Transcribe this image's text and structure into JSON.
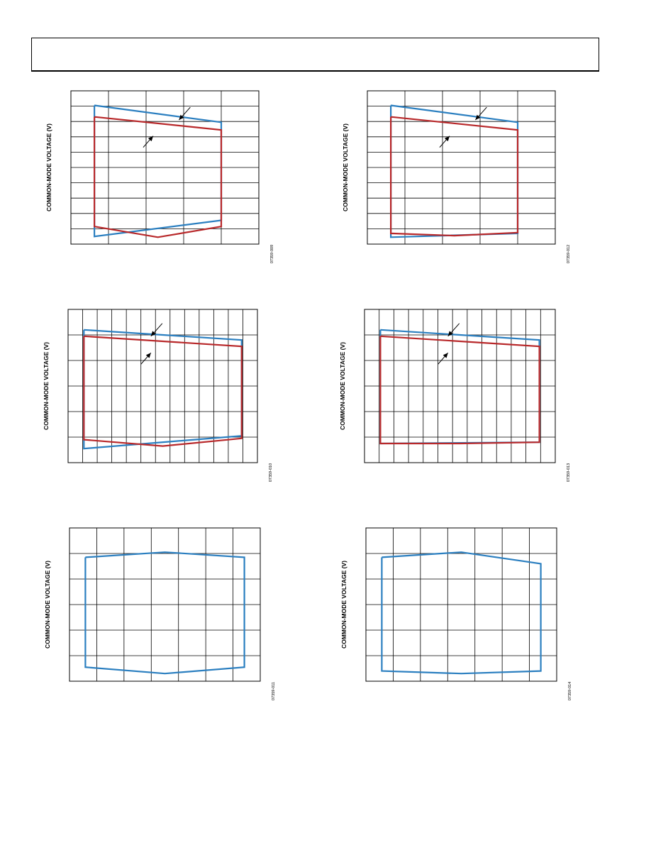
{
  "header": {
    "title": ""
  },
  "colors": {
    "blue": "#2b7fc0",
    "red": "#b8282a",
    "grid": "#000000"
  },
  "chart_data": [
    {
      "type": "line",
      "figure_code": "07359-009",
      "ylabel": "COMMON-MODE VOLTAGE (V)",
      "xlim": [
        0,
        4
      ],
      "ylim": [
        0,
        10
      ],
      "grid": true,
      "xtick_count": 5,
      "ytick_count": 10,
      "series": [
        {
          "color": "blue",
          "x": [
            0.5,
            0.5,
            3.2,
            3.2,
            0.5
          ],
          "y": [
            9.05,
            0.5,
            1.55,
            7.95,
            9.05
          ]
        },
        {
          "color": "red",
          "x": [
            0.5,
            0.5,
            1.85,
            3.2,
            3.2,
            0.5
          ],
          "y": [
            8.3,
            1.15,
            0.45,
            1.15,
            7.45,
            8.3
          ]
        }
      ],
      "arrows": [
        {
          "series": "blue",
          "x": 2.3,
          "y": 8.1
        },
        {
          "series": "red",
          "x": 1.75,
          "y": 7.05
        }
      ]
    },
    {
      "type": "line",
      "figure_code": "07359-012",
      "ylabel": "COMMON-MODE VOLTAGE (V)",
      "xlim": [
        0,
        4
      ],
      "ylim": [
        0,
        10
      ],
      "grid": true,
      "xtick_count": 5,
      "ytick_count": 10,
      "series": [
        {
          "color": "blue",
          "x": [
            0.5,
            0.5,
            3.2,
            3.2,
            0.5
          ],
          "y": [
            9.05,
            0.45,
            0.7,
            7.95,
            9.05
          ]
        },
        {
          "color": "red",
          "x": [
            0.5,
            0.5,
            1.85,
            3.2,
            3.2,
            0.5
          ],
          "y": [
            8.3,
            0.7,
            0.55,
            0.75,
            7.45,
            8.3
          ]
        }
      ],
      "arrows": [
        {
          "series": "blue",
          "x": 2.3,
          "y": 8.1
        },
        {
          "series": "red",
          "x": 1.75,
          "y": 7.05
        }
      ]
    },
    {
      "type": "line",
      "figure_code": "07359-010",
      "ylabel": "COMMON-MODE VOLTAGE (V)",
      "xlim": [
        0,
        12
      ],
      "ylim": [
        0,
        6
      ],
      "grid": true,
      "xtick_count": 13,
      "ytick_count": 6,
      "series": [
        {
          "color": "blue",
          "x": [
            1,
            1,
            11,
            11,
            1
          ],
          "y": [
            5.2,
            0.55,
            1.05,
            4.8,
            5.2
          ]
        },
        {
          "color": "red",
          "x": [
            1,
            1,
            6,
            11,
            11,
            1
          ],
          "y": [
            4.95,
            0.9,
            0.65,
            0.95,
            4.55,
            4.95
          ]
        }
      ],
      "arrows": [
        {
          "series": "blue",
          "x": 5.25,
          "y": 4.95
        },
        {
          "series": "red",
          "x": 5.25,
          "y": 4.3
        }
      ]
    },
    {
      "type": "line",
      "figure_code": "07359-013",
      "ylabel": "COMMON-MODE VOLTAGE (V)",
      "xlim": [
        0,
        12
      ],
      "ylim": [
        0,
        6
      ],
      "grid": true,
      "xtick_count": 13,
      "ytick_count": 6,
      "series": [
        {
          "color": "blue",
          "x": [
            1,
            1,
            11,
            11,
            1
          ],
          "y": [
            5.2,
            0.75,
            0.8,
            4.8,
            5.2
          ]
        },
        {
          "color": "red",
          "x": [
            1,
            1,
            6,
            11,
            11,
            1
          ],
          "y": [
            4.95,
            0.75,
            0.75,
            0.8,
            4.55,
            4.95
          ]
        }
      ],
      "arrows": [
        {
          "series": "blue",
          "x": 5.25,
          "y": 4.95
        },
        {
          "series": "red",
          "x": 5.25,
          "y": 4.3
        }
      ]
    },
    {
      "type": "line",
      "figure_code": "07359-011",
      "ylabel": "COMMON-MODE VOLTAGE (V)",
      "xlim": [
        0,
        6
      ],
      "ylim": [
        0,
        6
      ],
      "grid": true,
      "xtick_count": 7,
      "ytick_count": 6,
      "series": [
        {
          "color": "blue",
          "x": [
            0.5,
            0.5,
            3,
            5.5,
            5.5,
            3,
            0.5
          ],
          "y": [
            4.85,
            0.55,
            0.3,
            0.55,
            4.85,
            5.05,
            4.85
          ]
        }
      ],
      "arrows": []
    },
    {
      "type": "line",
      "figure_code": "07359-014",
      "ylabel": "COMMON-MODE VOLTAGE (V)",
      "xlim": [
        0,
        6
      ],
      "ylim": [
        0,
        6
      ],
      "grid": true,
      "xtick_count": 7,
      "ytick_count": 6,
      "series": [
        {
          "color": "blue",
          "x": [
            0.5,
            0.5,
            3,
            5.5,
            5.5,
            3,
            0.5
          ],
          "y": [
            4.85,
            0.4,
            0.3,
            0.4,
            4.6,
            5.05,
            4.85
          ]
        }
      ],
      "arrows": []
    }
  ]
}
